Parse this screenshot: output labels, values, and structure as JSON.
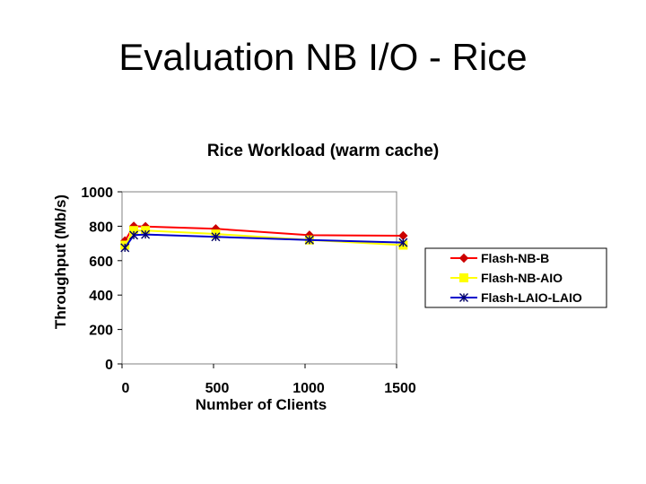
{
  "slide": {
    "title": "Evaluation NB I/O - Rice"
  },
  "chart_data": {
    "type": "line",
    "title": "Rice Workload (warm cache)",
    "xlabel": "Number of Clients",
    "ylabel": "Throughput (Mb/s)",
    "xlim": [
      0,
      1500
    ],
    "ylim": [
      0,
      1000
    ],
    "xticks": [
      0,
      500,
      1000,
      1500
    ],
    "yticks": [
      0,
      200,
      400,
      600,
      800,
      1000
    ],
    "grid": false,
    "legend_position": "right",
    "series": [
      {
        "name": "Flash-NB-B",
        "color": "#ff0000",
        "marker": "diamond",
        "marker_color": "#cc0000",
        "x": [
          16,
          64,
          128,
          512,
          1024,
          1536
        ],
        "y": [
          715,
          800,
          798,
          785,
          748,
          745
        ]
      },
      {
        "name": "Flash-NB-AIO",
        "color": "#ffff00",
        "marker": "square",
        "marker_color": "#ffff00",
        "x": [
          16,
          64,
          128,
          512,
          1024,
          1536
        ],
        "y": [
          690,
          775,
          775,
          755,
          720,
          690
        ]
      },
      {
        "name": "Flash-LAIO-LAIO",
        "color": "#0000cc",
        "marker": "star",
        "marker_color": "#000066",
        "x": [
          16,
          64,
          128,
          512,
          1024,
          1536
        ],
        "y": [
          675,
          748,
          752,
          738,
          720,
          705
        ]
      }
    ]
  }
}
